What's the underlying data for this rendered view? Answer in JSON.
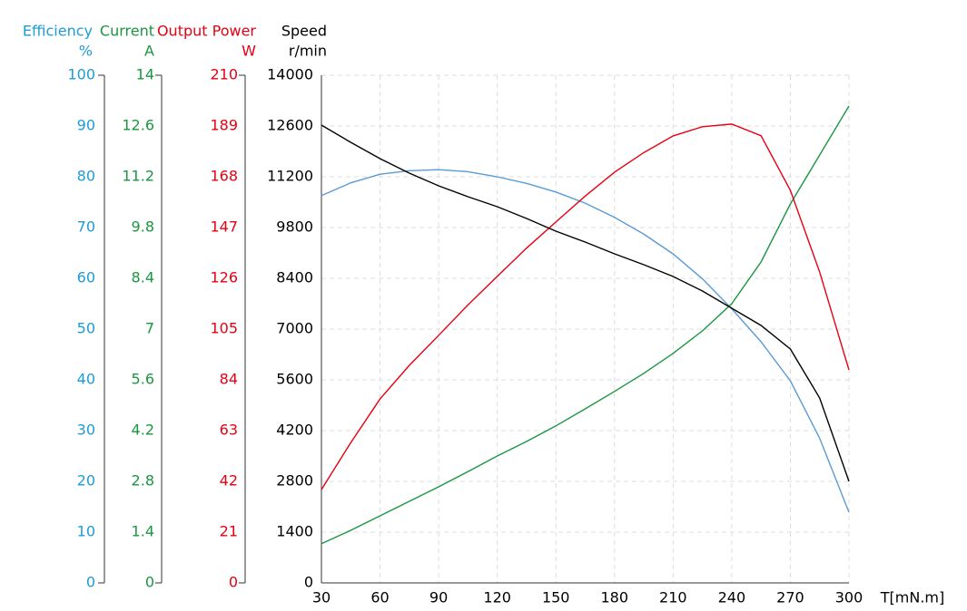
{
  "chart_data": {
    "type": "line",
    "grid": true,
    "x_title": "T[mN.m]",
    "xlim": [
      30,
      300
    ],
    "xticks": [
      30,
      60,
      90,
      120,
      150,
      180,
      210,
      240,
      270,
      300
    ],
    "x": [
      30,
      45,
      60,
      75,
      90,
      105,
      120,
      135,
      150,
      165,
      180,
      195,
      210,
      225,
      240,
      255,
      270,
      285,
      300
    ],
    "y_axes": [
      {
        "title": "Efficiency",
        "unit": "%",
        "color": "#1e9bd7",
        "lim": [
          0,
          100
        ],
        "ticks": [
          0,
          10,
          20,
          30,
          40,
          50,
          60,
          70,
          80,
          90,
          100
        ]
      },
      {
        "title": "Current",
        "unit": "A",
        "color": "#1a9641",
        "lim": [
          0,
          14
        ],
        "ticks": [
          0,
          1.4,
          2.8,
          4.2,
          5.6,
          7,
          8.4,
          9.8,
          11.2,
          12.6,
          14
        ]
      },
      {
        "title": "Output Power",
        "unit": "W",
        "color": "#e60012",
        "lim": [
          0,
          210
        ],
        "ticks": [
          0,
          21,
          42,
          63,
          84,
          105,
          126,
          147,
          168,
          189,
          210
        ]
      },
      {
        "title": "Speed",
        "unit": "r/min",
        "color": "#000000",
        "lim": [
          0,
          14000
        ],
        "ticks": [
          0,
          1400,
          2800,
          4200,
          5600,
          7000,
          8400,
          9800,
          11200,
          12600,
          14000
        ]
      }
    ],
    "series": [
      {
        "name": "Efficiency",
        "axis": 0,
        "color": "#5b9bd5",
        "values": [
          76.3,
          78.8,
          80.5,
          81.2,
          81.4,
          81,
          80,
          78.7,
          77,
          74.8,
          72,
          68.7,
          64.8,
          59.9,
          54,
          47.5,
          39.8,
          28.5,
          13.9
        ]
      },
      {
        "name": "Current",
        "axis": 1,
        "color": "#1a9641",
        "values": [
          1.08,
          1.45,
          1.85,
          2.25,
          2.65,
          3.07,
          3.5,
          3.9,
          4.33,
          4.8,
          5.28,
          5.78,
          6.33,
          6.95,
          7.7,
          8.85,
          10.45,
          11.8,
          13.15
        ]
      },
      {
        "name": "Output Power",
        "axis": 2,
        "color": "#e60012",
        "values": [
          38.6,
          58,
          76.1,
          90,
          102.4,
          115,
          126.8,
          138.5,
          149.3,
          160,
          169.9,
          178,
          184.9,
          188.7,
          189.8,
          185,
          162.4,
          128.6,
          88.1
        ]
      },
      {
        "name": "Speed",
        "axis": 3,
        "color": "#000000",
        "values": [
          12625,
          12150,
          11700,
          11300,
          10950,
          10650,
          10375,
          10050,
          9700,
          9400,
          9075,
          8775,
          8450,
          8050,
          7575,
          7100,
          6450,
          5100,
          2800
        ]
      }
    ]
  }
}
